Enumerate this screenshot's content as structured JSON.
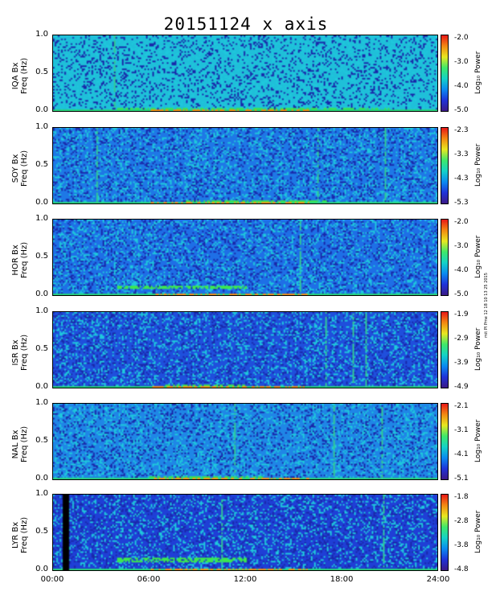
{
  "title": "20151124 x axis",
  "stamp": "mit PI Pme 12 18 10 13 25 2015",
  "chart_data": {
    "type": "heatmap",
    "xlabel": "",
    "x_ticks": [
      "00:00",
      "06:00",
      "12:00",
      "18:00",
      "24:00"
    ],
    "x_range_hours": [
      0,
      24
    ],
    "y_ticks": [
      "0.0",
      "0.5",
      "1.0"
    ],
    "y_range_hz": [
      0,
      1
    ],
    "colorbar_label": "Log₁₀ Power",
    "colorscale": [
      "#3b1a86",
      "#1f33d9",
      "#0a8bf0",
      "#14d2c8",
      "#3fe86a",
      "#e8e820",
      "#f28a12",
      "#e81818"
    ],
    "panels": [
      {
        "ylabel1": "IQA Bx",
        "ylabel2": "Freq (Hz)",
        "cbar": [
          "-2.0",
          "-3.0",
          "-4.0",
          "-5.0"
        ],
        "background": "#1fbfd9",
        "lines_hours": [
          3.8
        ],
        "bands": [
          {
            "start": 4,
            "end": 21,
            "freq": 0.02
          }
        ]
      },
      {
        "ylabel1": "SOY Bx",
        "ylabel2": "Freq (Hz)",
        "cbar": [
          "-2.3",
          "-3.3",
          "-4.3",
          "-5.3"
        ],
        "background": "#1e78e6",
        "lines_hours": [
          2.7,
          16.5,
          20.7
        ],
        "bands": [
          {
            "start": 8,
            "end": 17,
            "freq": 0.02
          }
        ]
      },
      {
        "ylabel1": "HOR Bx",
        "ylabel2": "Freq (Hz)",
        "cbar": [
          "-2.0",
          "-3.0",
          "-4.0",
          "-5.0"
        ],
        "background": "#1e6fe6",
        "lines_hours": [
          15.4
        ],
        "bands": [
          {
            "start": 4,
            "end": 12,
            "freq": 0.12
          }
        ]
      },
      {
        "ylabel1": "ISR Bx",
        "ylabel2": "Freq (Hz)",
        "cbar": [
          "-1.9",
          "-2.9",
          "-3.9",
          "-4.9"
        ],
        "background": "#1f4fdc",
        "lines_hours": [
          17,
          18.7,
          19.5
        ],
        "bands": [
          {
            "start": 7,
            "end": 12,
            "freq": 0.02
          }
        ]
      },
      {
        "ylabel1": "NAL Bx",
        "ylabel2": "Freq (Hz)",
        "cbar": [
          "-2.1",
          "-3.1",
          "-4.1",
          "-5.1"
        ],
        "background": "#1f86e6",
        "lines_hours": [
          11.3,
          17.5,
          20.5
        ],
        "bands": [
          {
            "start": 6,
            "end": 13,
            "freq": 0.02
          }
        ]
      },
      {
        "ylabel1": "LYR Bx",
        "ylabel2": "Freq (Hz)",
        "cbar": [
          "-1.8",
          "-2.8",
          "-3.8",
          "-4.8"
        ],
        "background": "#1f3fd6",
        "lines_hours": [
          10.5,
          20.6
        ],
        "bands": [
          {
            "start": 4,
            "end": 12,
            "freq": 0.15
          }
        ],
        "gap_hours": [
          0.6,
          0.9
        ]
      }
    ]
  }
}
